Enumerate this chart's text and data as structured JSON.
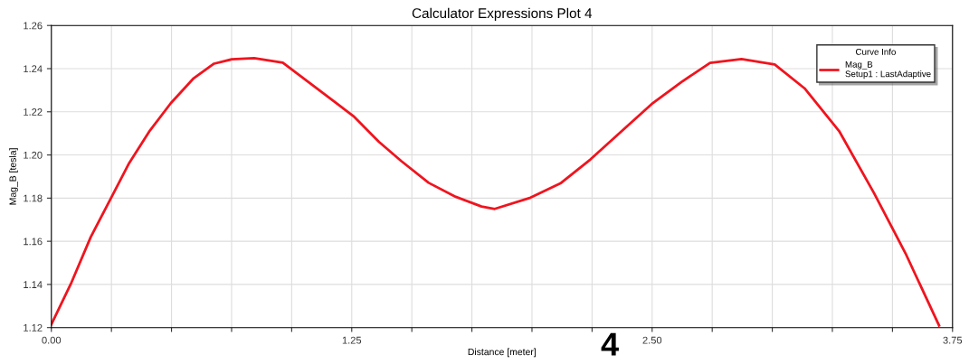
{
  "chart_data": {
    "type": "line",
    "title": "Calculator Expressions Plot 4",
    "xlabel": "Distance [meter]",
    "ylabel": "Mag_B [tesla]",
    "legend_title": "Curve Info",
    "annotations": [
      "Setup1 : LastAdaptive",
      "4"
    ],
    "x": [
      0,
      0.084,
      0.164,
      0.251,
      0.324,
      0.41,
      0.497,
      0.59,
      0.677,
      0.75,
      0.844,
      0.963,
      1.07,
      1.177,
      1.257,
      1.363,
      1.457,
      1.57,
      1.683,
      1.79,
      1.845,
      1.994,
      2.118,
      2.243,
      2.374,
      2.498,
      2.623,
      2.741,
      2.872,
      3.01,
      3.134,
      3.278,
      3.423,
      3.554,
      3.694
    ],
    "series": [
      {
        "name": "Mag_B",
        "color": "#f0141e",
        "values": [
          1.1215,
          1.141,
          1.162,
          1.1806,
          1.1963,
          1.2113,
          1.224,
          1.2353,
          1.2423,
          1.2443,
          1.2449,
          1.2428,
          1.2338,
          1.2248,
          1.218,
          1.2061,
          1.1971,
          1.1871,
          1.1806,
          1.1761,
          1.175,
          1.1802,
          1.1868,
          1.1979,
          1.2111,
          1.2236,
          1.2339,
          1.2427,
          1.2444,
          1.2419,
          1.2309,
          1.2111,
          1.1824,
          1.1545,
          1.121
        ]
      }
    ],
    "xlim": [
      0,
      3.75
    ],
    "ylim": [
      1.12,
      1.26
    ],
    "xticks": [
      {
        "value": 0,
        "label": "0.00"
      },
      {
        "value": 0.25,
        "label": null
      },
      {
        "value": 0.5,
        "label": null
      },
      {
        "value": 0.75,
        "label": null
      },
      {
        "value": 1,
        "label": null
      },
      1.25,
      {
        "value": 1.5,
        "label": null
      },
      {
        "value": 1.75,
        "label": null
      },
      {
        "value": 2,
        "label": null
      },
      {
        "value": 2.25,
        "label": null
      },
      {
        "value": 2.5,
        "label": "2.50"
      },
      {
        "value": 2.75,
        "label": null
      },
      {
        "value": 3,
        "label": null
      },
      {
        "value": 3.25,
        "label": null
      },
      {
        "value": 3.5,
        "label": null
      },
      3.75
    ],
    "yticks": [
      1.12,
      1.14,
      1.16,
      {
        "value": 1.18,
        "label": "1.18"
      },
      {
        "value": 1.2,
        "label": "1.20"
      },
      1.22,
      1.24,
      1.26
    ],
    "grid": true,
    "legend": "top right",
    "marker": "none",
    "line_style": "solid"
  }
}
